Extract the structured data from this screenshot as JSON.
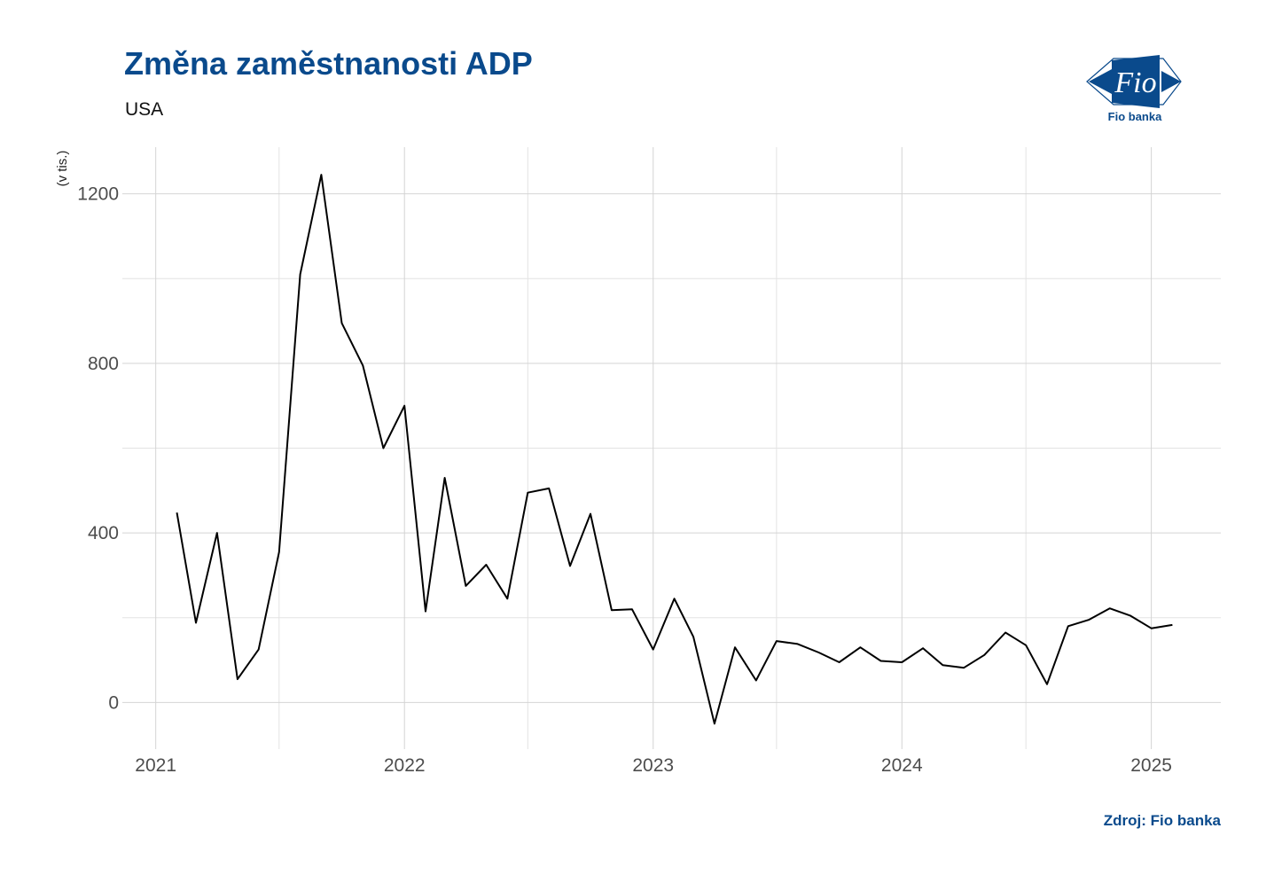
{
  "header": {
    "title": "Změna zaměstnanosti ADP",
    "subtitle": "USA"
  },
  "logo": {
    "text": "Fio",
    "caption": "Fio banka",
    "color": "#0a4a8c"
  },
  "footer": {
    "source": "Zdroj: Fio banka"
  },
  "chart_data": {
    "type": "line",
    "title": "Změna zaměstnanosti ADP",
    "subtitle": "USA",
    "xlabel": "",
    "ylabel": "(v tis.)",
    "ylim": [
      -110,
      1310
    ],
    "xlim": [
      "2020-11-13",
      "2025-04-13"
    ],
    "yticks": [
      0,
      400,
      800,
      1200
    ],
    "xticks": [
      "2021",
      "2022",
      "2023",
      "2024",
      "2025"
    ],
    "grid": true,
    "line_color": "#000000",
    "series": [
      {
        "x": [
          "2021-02-01",
          "2021-03-01",
          "2021-04-01",
          "2021-05-01",
          "2021-06-01",
          "2021-07-01",
          "2021-08-01",
          "2021-09-01",
          "2021-10-01",
          "2021-11-01",
          "2021-12-01",
          "2022-01-01",
          "2022-02-01",
          "2022-03-01",
          "2022-04-01",
          "2022-05-01",
          "2022-06-01",
          "2022-07-01",
          "2022-08-01",
          "2022-09-01",
          "2022-10-01",
          "2022-11-01",
          "2022-12-01",
          "2023-01-01",
          "2023-02-01",
          "2023-03-01",
          "2023-04-01",
          "2023-05-01",
          "2023-06-01",
          "2023-07-01",
          "2023-08-01",
          "2023-09-01",
          "2023-10-01",
          "2023-11-01",
          "2023-12-01",
          "2024-01-01",
          "2024-02-01",
          "2024-03-01",
          "2024-04-01",
          "2024-05-01",
          "2024-06-01",
          "2024-07-01",
          "2024-08-01",
          "2024-09-01",
          "2024-10-01",
          "2024-11-01",
          "2024-12-01",
          "2025-01-01",
          "2025-02-01"
        ],
        "values": [
          448,
          188,
          400,
          55,
          125,
          355,
          1010,
          1245,
          895,
          795,
          600,
          700,
          215,
          530,
          275,
          325,
          245,
          495,
          505,
          322,
          445,
          218,
          220,
          125,
          245,
          155,
          -50,
          130,
          52,
          145,
          138,
          118,
          95,
          130,
          98,
          95,
          128,
          88,
          82,
          112,
          165,
          135,
          43,
          180,
          195,
          222,
          205,
          175,
          183
        ]
      }
    ]
  }
}
